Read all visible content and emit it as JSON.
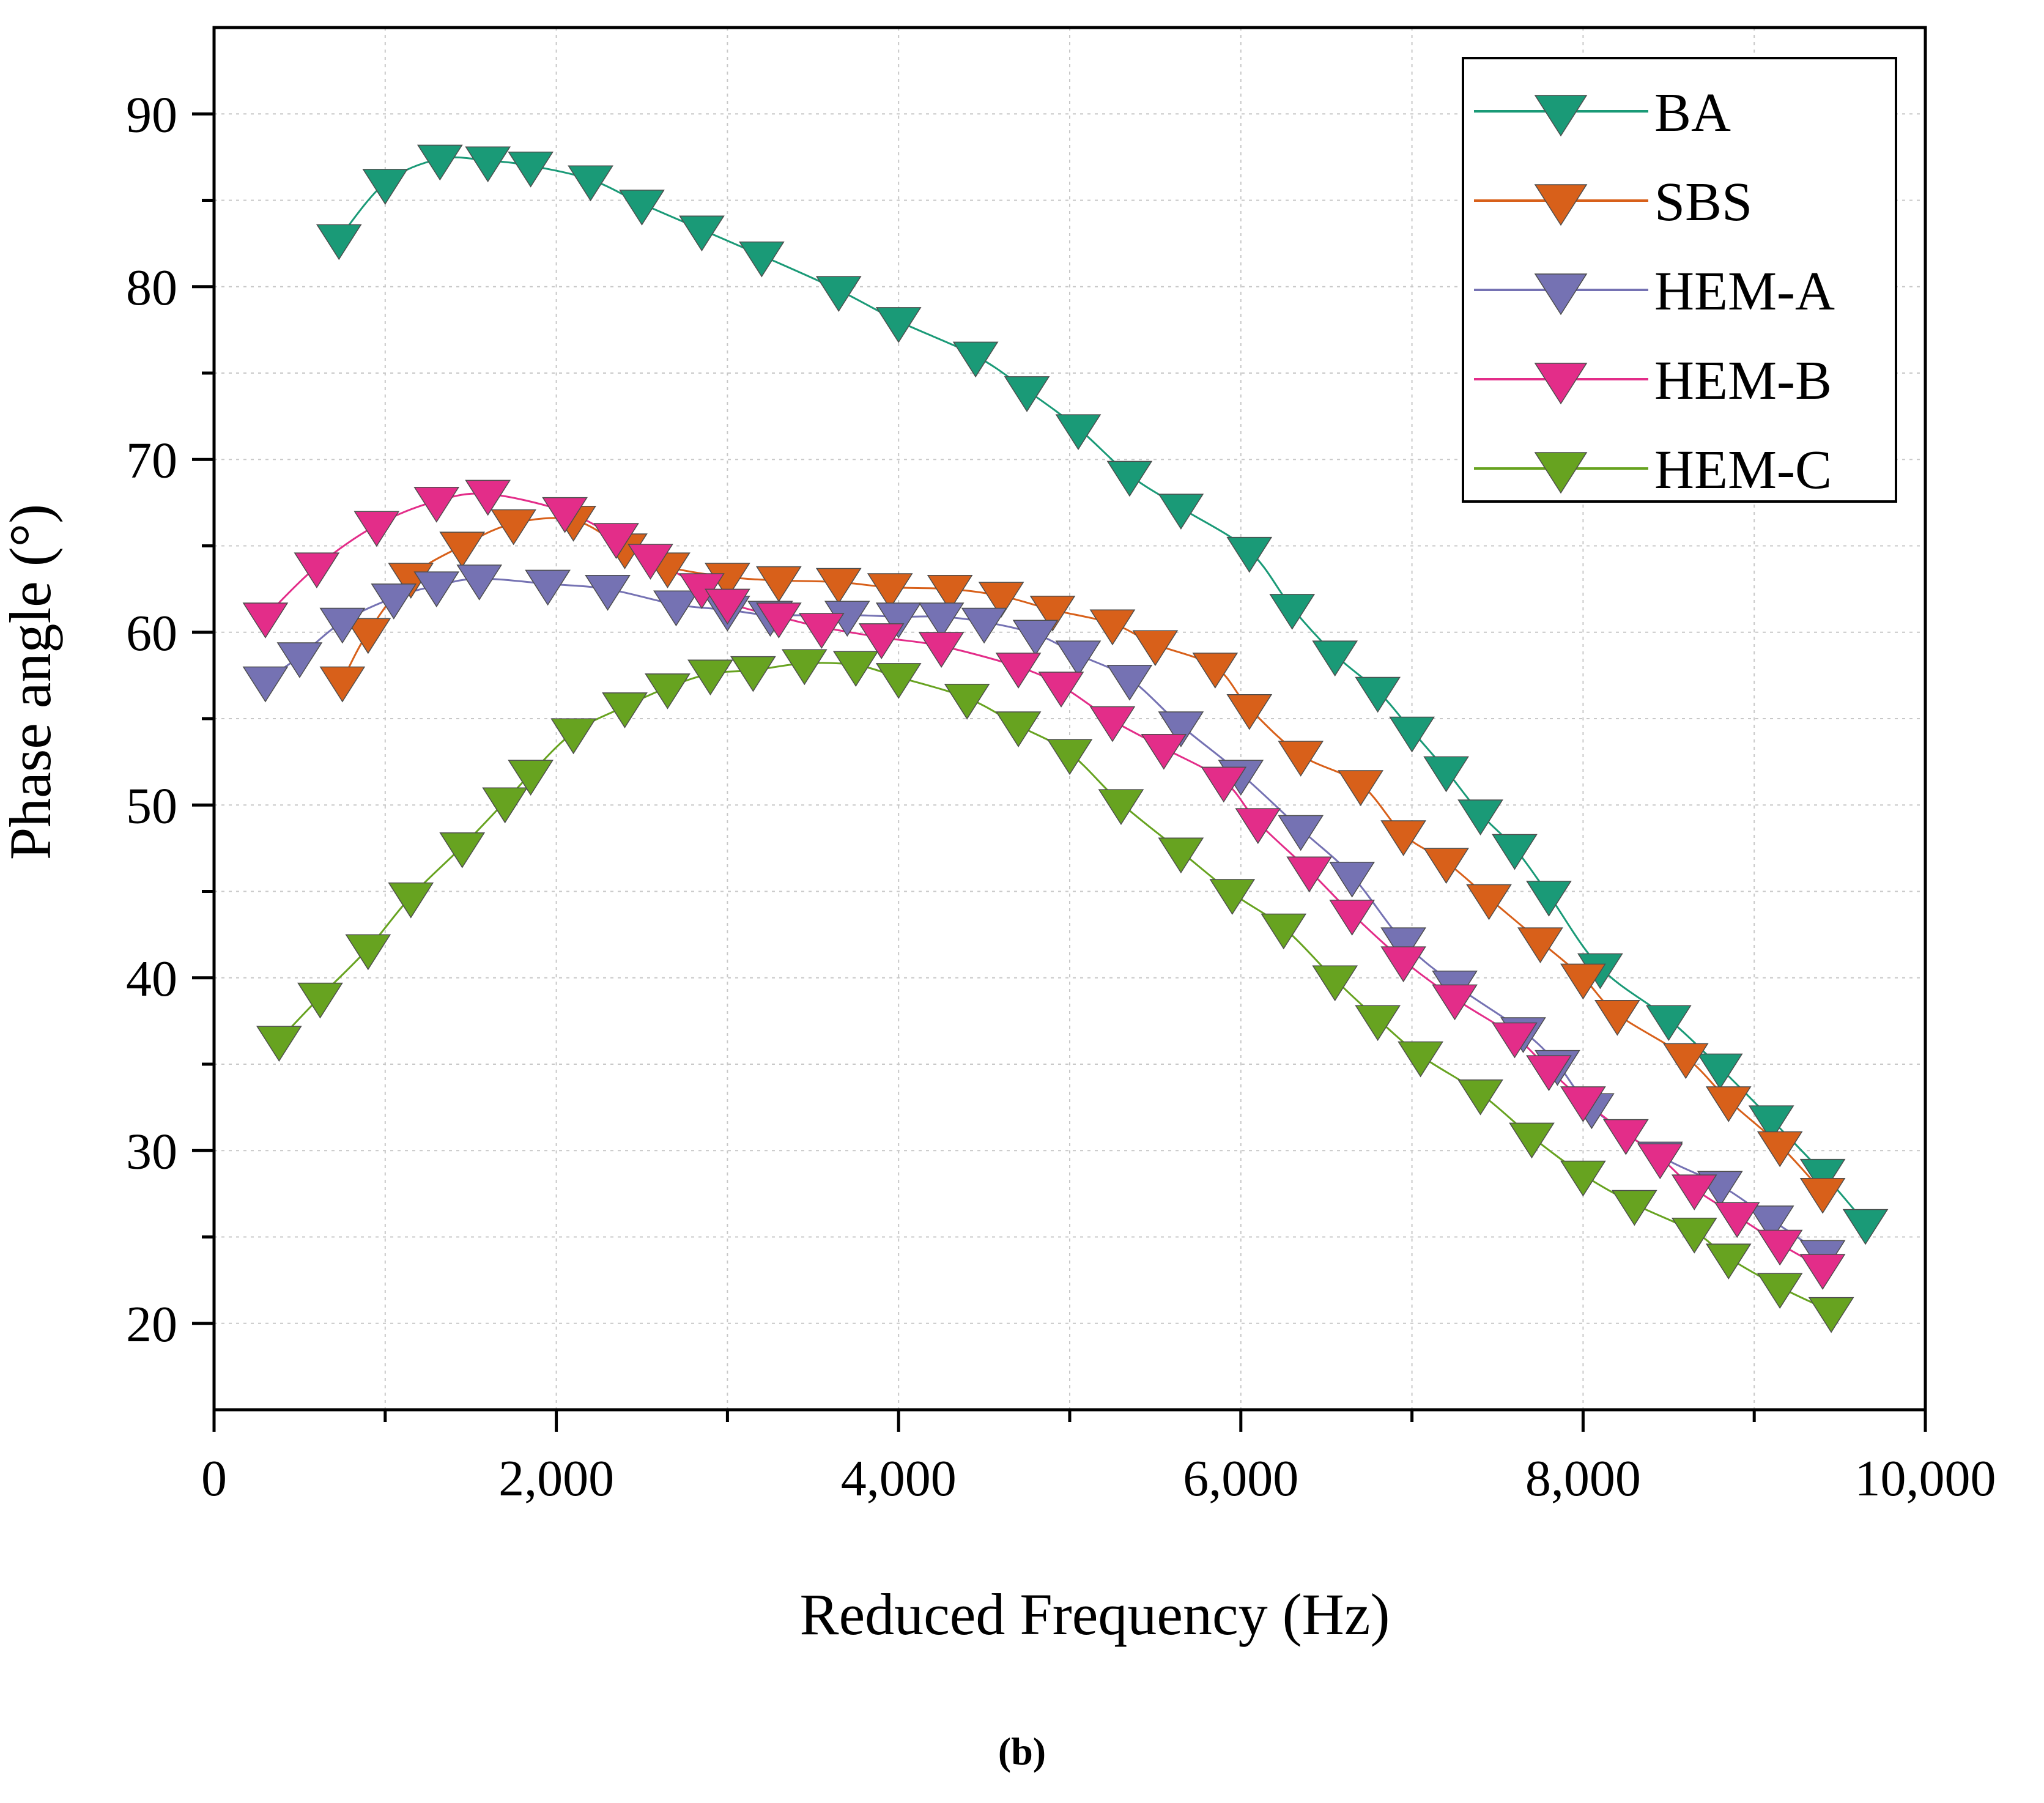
{
  "chart_data": {
    "type": "line",
    "xlabel": "Reduced Frequency (Hz)",
    "ylabel": "Phase angle  (°)",
    "xlim": [
      0,
      10000
    ],
    "ylim": [
      15,
      95
    ],
    "xticks": [
      0,
      2000,
      4000,
      6000,
      8000,
      10000
    ],
    "xtick_labels": [
      "0",
      "2,000",
      "4,000",
      "6,000",
      "8,000",
      "10,000"
    ],
    "yticks": [
      20,
      30,
      40,
      50,
      60,
      70,
      80,
      90
    ],
    "ytick_labels": [
      "20",
      "30",
      "40",
      "50",
      "60",
      "70",
      "80",
      "90"
    ],
    "grid": true,
    "marker": "down-triangle",
    "legend_position": "top-right",
    "panel_label": "(b)",
    "series": [
      {
        "name": "BA",
        "color": "#1a9a77",
        "points": [
          [
            730,
            82.8
          ],
          [
            1000,
            86.0
          ],
          [
            1320,
            87.4
          ],
          [
            1600,
            87.3
          ],
          [
            1850,
            87.0
          ],
          [
            2200,
            86.2
          ],
          [
            2500,
            84.8
          ],
          [
            2850,
            83.3
          ],
          [
            3200,
            81.8
          ],
          [
            3650,
            79.8
          ],
          [
            4000,
            78.0
          ],
          [
            4450,
            76.0
          ],
          [
            4750,
            74.0
          ],
          [
            5050,
            71.8
          ],
          [
            5350,
            69.1
          ],
          [
            5650,
            67.2
          ],
          [
            6050,
            64.7
          ],
          [
            6300,
            61.4
          ],
          [
            6550,
            58.7
          ],
          [
            6800,
            56.6
          ],
          [
            7000,
            54.3
          ],
          [
            7200,
            52.0
          ],
          [
            7400,
            49.5
          ],
          [
            7600,
            47.5
          ],
          [
            7800,
            44.8
          ],
          [
            8100,
            40.6
          ],
          [
            8500,
            37.6
          ],
          [
            8800,
            34.8
          ],
          [
            9100,
            31.8
          ],
          [
            9400,
            28.7
          ],
          [
            9650,
            25.8
          ]
        ]
      },
      {
        "name": "SBS",
        "color": "#d8601a",
        "points": [
          [
            750,
            57.2
          ],
          [
            900,
            60.0
          ],
          [
            1150,
            63.2
          ],
          [
            1450,
            65.0
          ],
          [
            1750,
            66.3
          ],
          [
            2100,
            66.5
          ],
          [
            2400,
            64.9
          ],
          [
            2650,
            63.8
          ],
          [
            3000,
            63.2
          ],
          [
            3300,
            63.0
          ],
          [
            3650,
            62.9
          ],
          [
            3950,
            62.6
          ],
          [
            4300,
            62.5
          ],
          [
            4600,
            62.1
          ],
          [
            4900,
            61.3
          ],
          [
            5250,
            60.5
          ],
          [
            5500,
            59.3
          ],
          [
            5850,
            58.0
          ],
          [
            6050,
            55.6
          ],
          [
            6350,
            52.9
          ],
          [
            6700,
            51.2
          ],
          [
            6950,
            48.3
          ],
          [
            7200,
            46.7
          ],
          [
            7450,
            44.6
          ],
          [
            7750,
            42.1
          ],
          [
            8000,
            40.0
          ],
          [
            8200,
            37.9
          ],
          [
            8600,
            35.4
          ],
          [
            8850,
            32.9
          ],
          [
            9150,
            30.3
          ],
          [
            9400,
            27.6
          ]
        ]
      },
      {
        "name": "HEM-A",
        "color": "#7572b3",
        "points": [
          [
            300,
            57.2
          ],
          [
            500,
            58.6
          ],
          [
            750,
            60.6
          ],
          [
            1050,
            62.0
          ],
          [
            1300,
            62.7
          ],
          [
            1550,
            63.1
          ],
          [
            1950,
            62.8
          ],
          [
            2300,
            62.5
          ],
          [
            2700,
            61.6
          ],
          [
            3000,
            61.3
          ],
          [
            3250,
            61.0
          ],
          [
            3700,
            61.0
          ],
          [
            4000,
            60.9
          ],
          [
            4250,
            60.9
          ],
          [
            4500,
            60.6
          ],
          [
            4800,
            59.9
          ],
          [
            5050,
            58.7
          ],
          [
            5350,
            57.3
          ],
          [
            5650,
            54.6
          ],
          [
            6000,
            51.8
          ],
          [
            6350,
            48.6
          ],
          [
            6650,
            45.9
          ],
          [
            6950,
            42.1
          ],
          [
            7250,
            39.6
          ],
          [
            7650,
            36.9
          ],
          [
            7850,
            35.0
          ],
          [
            8050,
            32.5
          ],
          [
            8450,
            29.7
          ],
          [
            8800,
            28.0
          ],
          [
            9100,
            26.0
          ],
          [
            9400,
            24.0
          ]
        ]
      },
      {
        "name": "HEM-B",
        "color": "#e32d89",
        "points": [
          [
            300,
            60.9
          ],
          [
            600,
            63.8
          ],
          [
            950,
            66.2
          ],
          [
            1300,
            67.6
          ],
          [
            1600,
            68.0
          ],
          [
            2050,
            67.0
          ],
          [
            2350,
            65.5
          ],
          [
            2550,
            64.3
          ],
          [
            2850,
            62.6
          ],
          [
            3000,
            61.7
          ],
          [
            3300,
            60.9
          ],
          [
            3550,
            60.3
          ],
          [
            3900,
            59.7
          ],
          [
            4250,
            59.2
          ],
          [
            4700,
            58.0
          ],
          [
            4950,
            56.9
          ],
          [
            5250,
            54.9
          ],
          [
            5550,
            53.3
          ],
          [
            5900,
            51.4
          ],
          [
            6100,
            49.0
          ],
          [
            6400,
            46.2
          ],
          [
            6650,
            43.7
          ],
          [
            6950,
            41.0
          ],
          [
            7250,
            38.8
          ],
          [
            7600,
            36.6
          ],
          [
            7800,
            34.7
          ],
          [
            8000,
            32.9
          ],
          [
            8250,
            31.0
          ],
          [
            8450,
            29.6
          ],
          [
            8650,
            27.8
          ],
          [
            8900,
            26.2
          ],
          [
            9150,
            24.6
          ],
          [
            9400,
            23.2
          ]
        ]
      },
      {
        "name": "HEM-C",
        "color": "#67a320",
        "points": [
          [
            380,
            36.4
          ],
          [
            620,
            38.9
          ],
          [
            900,
            41.7
          ],
          [
            1150,
            44.7
          ],
          [
            1450,
            47.6
          ],
          [
            1700,
            50.2
          ],
          [
            1850,
            51.8
          ],
          [
            2100,
            54.2
          ],
          [
            2400,
            55.7
          ],
          [
            2650,
            56.8
          ],
          [
            2900,
            57.6
          ],
          [
            3150,
            57.8
          ],
          [
            3450,
            58.2
          ],
          [
            3750,
            58.1
          ],
          [
            4000,
            57.4
          ],
          [
            4400,
            56.2
          ],
          [
            4700,
            54.6
          ],
          [
            5000,
            53.0
          ],
          [
            5300,
            50.1
          ],
          [
            5650,
            47.3
          ],
          [
            5950,
            44.9
          ],
          [
            6250,
            42.9
          ],
          [
            6550,
            39.9
          ],
          [
            6800,
            37.6
          ],
          [
            7050,
            35.5
          ],
          [
            7400,
            33.3
          ],
          [
            7700,
            30.8
          ],
          [
            8000,
            28.6
          ],
          [
            8300,
            26.9
          ],
          [
            8650,
            25.3
          ],
          [
            8850,
            23.8
          ],
          [
            9150,
            22.1
          ],
          [
            9450,
            20.7
          ]
        ]
      }
    ]
  }
}
